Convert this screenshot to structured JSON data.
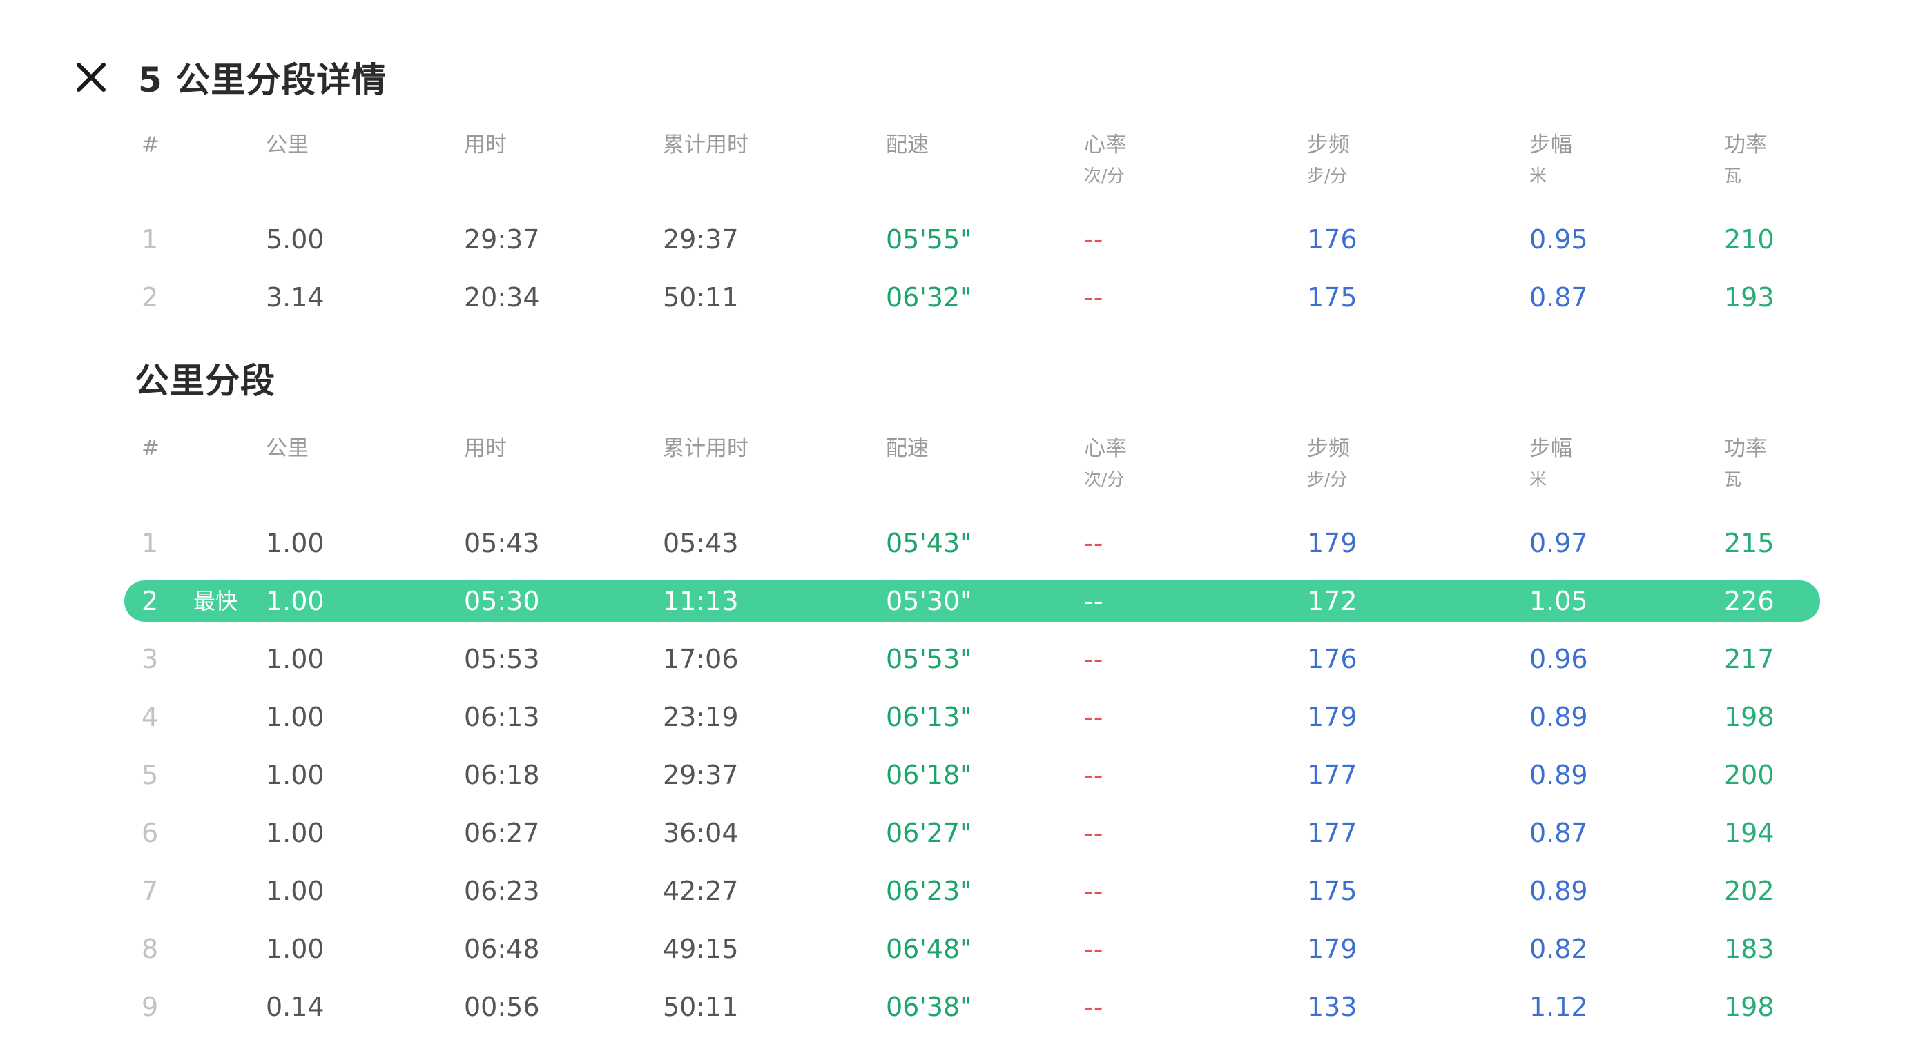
{
  "header": {
    "title": "5 公里分段详情"
  },
  "columns": {
    "idx": "#",
    "km": "公里",
    "time": "用时",
    "cum": "累计用时",
    "pace": "配速",
    "hr": "心率",
    "hr_unit": "次/分",
    "cad": "步频",
    "cad_unit": "步/分",
    "str": "步幅",
    "str_unit": "米",
    "pow": "功率",
    "pow_unit": "瓦"
  },
  "split5": [
    {
      "idx": "1",
      "km": "5.00",
      "time": "29:37",
      "cum": "29:37",
      "pace": "05'55\"",
      "hr": "--",
      "cad": "176",
      "str": "0.95",
      "pow": "210"
    },
    {
      "idx": "2",
      "km": "3.14",
      "time": "20:34",
      "cum": "50:11",
      "pace": "06'32\"",
      "hr": "--",
      "cad": "175",
      "str": "0.87",
      "pow": "193"
    }
  ],
  "km_section": {
    "title": "公里分段",
    "fastest_label": "最快"
  },
  "km": [
    {
      "idx": "1",
      "km": "1.00",
      "time": "05:43",
      "cum": "05:43",
      "pace": "05'43\"",
      "hr": "--",
      "cad": "179",
      "str": "0.97",
      "pow": "215"
    },
    {
      "idx": "2",
      "km": "1.00",
      "time": "05:30",
      "cum": "11:13",
      "pace": "05'30\"",
      "hr": "--",
      "cad": "172",
      "str": "1.05",
      "pow": "226"
    },
    {
      "idx": "3",
      "km": "1.00",
      "time": "05:53",
      "cum": "17:06",
      "pace": "05'53\"",
      "hr": "--",
      "cad": "176",
      "str": "0.96",
      "pow": "217"
    },
    {
      "idx": "4",
      "km": "1.00",
      "time": "06:13",
      "cum": "23:19",
      "pace": "06'13\"",
      "hr": "--",
      "cad": "179",
      "str": "0.89",
      "pow": "198"
    },
    {
      "idx": "5",
      "km": "1.00",
      "time": "06:18",
      "cum": "29:37",
      "pace": "06'18\"",
      "hr": "--",
      "cad": "177",
      "str": "0.89",
      "pow": "200"
    },
    {
      "idx": "6",
      "km": "1.00",
      "time": "06:27",
      "cum": "36:04",
      "pace": "06'27\"",
      "hr": "--",
      "cad": "177",
      "str": "0.87",
      "pow": "194"
    },
    {
      "idx": "7",
      "km": "1.00",
      "time": "06:23",
      "cum": "42:27",
      "pace": "06'23\"",
      "hr": "--",
      "cad": "175",
      "str": "0.89",
      "pow": "202"
    },
    {
      "idx": "8",
      "km": "1.00",
      "time": "06:48",
      "cum": "49:15",
      "pace": "06'48\"",
      "hr": "--",
      "cad": "179",
      "str": "0.82",
      "pow": "183"
    },
    {
      "idx": "9",
      "km": "0.14",
      "time": "00:56",
      "cum": "50:11",
      "pace": "06'38\"",
      "hr": "--",
      "cad": "133",
      "str": "1.12",
      "pow": "198"
    }
  ]
}
